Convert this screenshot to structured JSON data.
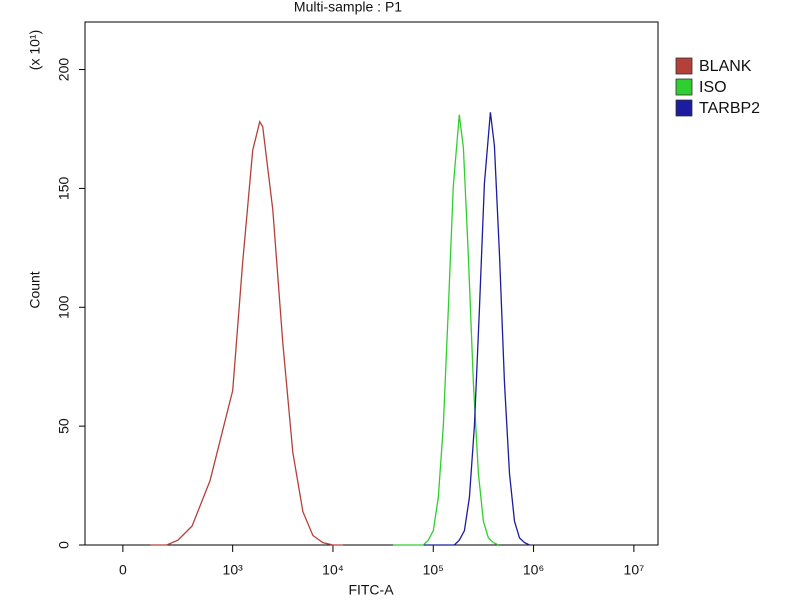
{
  "chart_data": {
    "type": "line",
    "title": "Multi-sample : P1",
    "x_label": "FITC-A",
    "y_label": "Count",
    "y_multiplier": "(x 10¹)",
    "xscale": "biexponential",
    "xlim": [
      -345,
      17400000
    ],
    "xticks": [
      {
        "value": 0,
        "label": "0"
      },
      {
        "value": 1000,
        "label": "10³"
      },
      {
        "value": 10000,
        "label": "10⁴"
      },
      {
        "value": 100000,
        "label": "10⁵"
      },
      {
        "value": 1000000,
        "label": "10⁶"
      },
      {
        "value": 10000000,
        "label": "10⁷"
      }
    ],
    "ylim": [
      0,
      220
    ],
    "yticks": [
      0,
      50,
      100,
      150,
      200
    ],
    "legend": "right",
    "series": [
      {
        "name": "BLANK",
        "color": "#b5403a",
        "x": [
          251,
          316,
          398,
          501,
          631,
          794,
          1000,
          1259,
          1585,
          1862,
          1995,
          2512,
          3162,
          3981,
          5012,
          6310,
          7943,
          10000,
          12589
        ],
        "values": [
          0,
          0,
          0,
          2,
          8,
          27,
          65,
          119,
          166,
          178,
          176,
          141,
          85,
          39,
          14,
          4,
          1,
          0,
          0
        ]
      },
      {
        "name": "ISO",
        "color": "#2fcf2f",
        "x": [
          39811,
          50119,
          63096,
          79433,
          89125,
          100000,
          112202,
          125893,
          141254,
          158489,
          181970,
          199526,
          223872,
          251189,
          281838,
          316228,
          354813,
          398107,
          446684
        ],
        "values": [
          0,
          0,
          0,
          0,
          2,
          6,
          20,
          50,
          99,
          151,
          181,
          167,
          121,
          68,
          30,
          10,
          3,
          1,
          0
        ]
      },
      {
        "name": "TARBP2",
        "color": "#1c1c9e",
        "x": [
          81283,
          102329,
          128825,
          162181,
          181970,
          204174,
          229087,
          257040,
          288403,
          323594,
          371535,
          407380,
          457088,
          512861,
          575440,
          645654,
          724436,
          812831,
          912011
        ],
        "values": [
          0,
          0,
          0,
          0,
          2,
          6,
          20,
          50,
          99,
          152,
          182,
          168,
          122,
          68,
          30,
          10,
          3,
          1,
          0
        ]
      }
    ]
  }
}
